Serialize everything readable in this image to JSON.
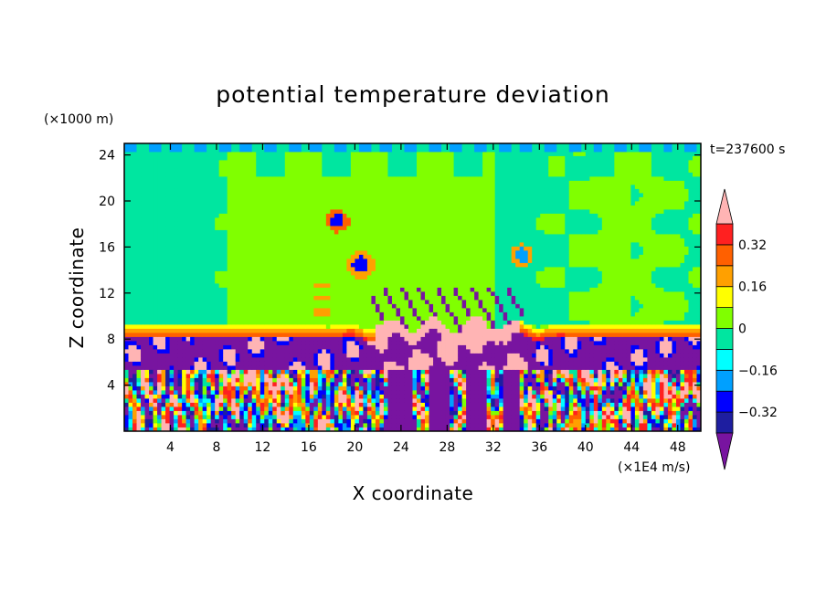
{
  "chart_data": {
    "type": "heatmap",
    "title": "potential temperature deviation",
    "xlabel": "X coordinate",
    "ylabel": "Z coordinate",
    "x_unit": "(×1E4 m/s)",
    "y_unit": "(×1000 m)",
    "time_label": "t=237600 s",
    "xlim": [
      0,
      50
    ],
    "ylim": [
      0,
      25
    ],
    "x_ticks": [
      4,
      8,
      12,
      16,
      20,
      24,
      28,
      32,
      36,
      40,
      44,
      48
    ],
    "y_ticks": [
      4,
      8,
      12,
      16,
      20,
      24
    ],
    "x_tick_labels": [
      "4",
      "8",
      "12",
      "16",
      "20",
      "24",
      "28",
      "32",
      "36",
      "40",
      "44",
      "48"
    ],
    "y_tick_labels": [
      "4",
      "8",
      "12",
      "16",
      "20",
      "24"
    ],
    "colorbar": {
      "levels": [
        -0.4,
        -0.32,
        -0.24,
        -0.16,
        -0.08,
        0,
        0.08,
        0.16,
        0.24,
        0.32,
        0.4
      ],
      "labels": [
        "0.32",
        "0.16",
        "0",
        "−0.16",
        "−0.32"
      ],
      "label_values": [
        0.32,
        0.16,
        0,
        -0.16,
        -0.32
      ],
      "colors": [
        "#1e1ea0",
        "#0000ff",
        "#00a0ff",
        "#00ffff",
        "#00e6a0",
        "#80ff00",
        "#ffff00",
        "#ffa000",
        "#ff6000",
        "#ff2020"
      ],
      "under_color": "#7814a0",
      "over_color": "#ffb4b4"
    },
    "field_description": "upper layer mostly 0 to -0.08 (green), thin warm band near z=8-9, strongly perturbed lower layer below z=8"
  }
}
